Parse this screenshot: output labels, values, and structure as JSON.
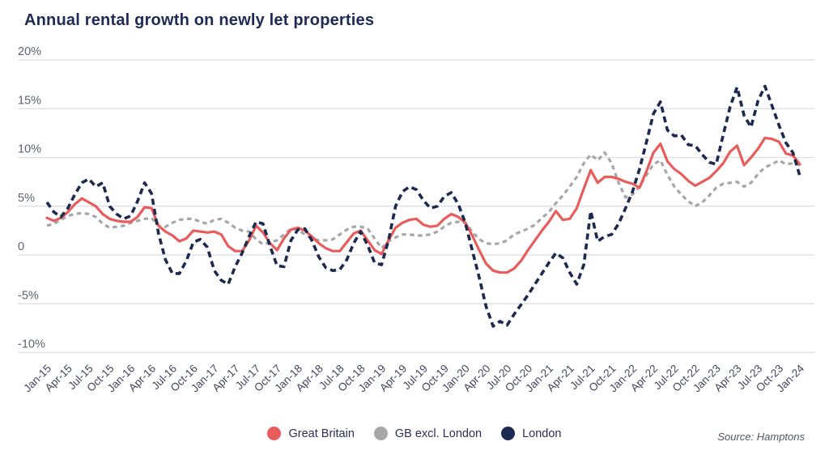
{
  "title": "Annual rental growth on newly let properties",
  "source": "Source: Hamptons",
  "legend": [
    {
      "label": "Great Britain",
      "color": "#e85c5c"
    },
    {
      "label": "GB excl. London",
      "color": "#a7a7a9"
    },
    {
      "label": "London",
      "color": "#1c2a50"
    }
  ],
  "colors": {
    "title": "#1f2a56",
    "gridline": "#dcdde4",
    "y_tick_text": "#5c6070",
    "x_tick_text": "#41465c",
    "background": "#ffffff"
  },
  "chart_data": {
    "type": "line",
    "title": "Annual rental growth on newly let properties",
    "unit": "%",
    "grid": "horizontal",
    "legend_position": "bottom-center",
    "x_start": "Jan-15",
    "x_step_months": 1,
    "x_tick_labels": [
      "Jan-15",
      "Apr-15",
      "Jul-15",
      "Oct-15",
      "Jan-16",
      "Apr-16",
      "Jul-16",
      "Oct-16",
      "Jan-17",
      "Apr-17",
      "Jul-17",
      "Oct-17",
      "Jan-18",
      "Apr-18",
      "Jul-18",
      "Oct-18",
      "Jan-19",
      "Apr-19",
      "Jul-19",
      "Oct-19",
      "Jan-20",
      "Apr-20",
      "Jul-20",
      "Oct-20",
      "Jan-21",
      "Apr-21",
      "Jul-21",
      "Oct-21",
      "Jan-22",
      "Apr-22",
      "Jul-22",
      "Oct-22",
      "Jan-23",
      "Apr-23",
      "Jul-23",
      "Oct-23",
      "Jan-24"
    ],
    "y_tick_labels": [
      "20%",
      "15%",
      "10%",
      "5%",
      "0",
      "-5%",
      "-10%"
    ],
    "y_tick_values": [
      20,
      15,
      10,
      5,
      0,
      -5,
      -10
    ],
    "ylim": [
      -12.5,
      21.5
    ],
    "series": [
      {
        "name": "Great Britain",
        "color": "#e85c5c",
        "style": "solid",
        "values": [
          3.8,
          3.5,
          3.8,
          4.4,
          5.2,
          5.8,
          5.4,
          5.0,
          4.2,
          3.7,
          3.5,
          3.4,
          3.4,
          3.9,
          4.9,
          4.8,
          3.0,
          2.4,
          2.0,
          1.4,
          1.7,
          2.5,
          2.4,
          2.3,
          2.4,
          2.1,
          0.9,
          0.4,
          0.4,
          1.5,
          3.0,
          2.3,
          1.2,
          0.5,
          1.7,
          2.6,
          2.8,
          2.5,
          1.9,
          1.2,
          0.7,
          0.4,
          0.4,
          1.3,
          2.2,
          2.5,
          1.5,
          0.5,
          0.1,
          1.5,
          2.8,
          3.3,
          3.6,
          3.7,
          3.1,
          2.9,
          3.0,
          3.7,
          4.2,
          3.9,
          3.3,
          2.0,
          0.5,
          -0.9,
          -1.6,
          -1.8,
          -1.8,
          -1.4,
          -0.6,
          0.5,
          1.5,
          2.5,
          3.4,
          4.5,
          3.6,
          3.7,
          4.8,
          6.8,
          8.7,
          7.4,
          8.0,
          8.0,
          7.8,
          7.5,
          7.3,
          6.9,
          8.6,
          10.5,
          11.4,
          9.6,
          8.8,
          8.3,
          7.6,
          7.1,
          7.5,
          7.9,
          8.6,
          9.4,
          10.6,
          11.2,
          9.2,
          10.0,
          10.9,
          12.0,
          11.9,
          11.6,
          10.4,
          10.2,
          9.3
        ]
      },
      {
        "name": "GB excl. London",
        "color": "#a7a7a9",
        "style": "dashed",
        "values": [
          3.0,
          3.2,
          3.6,
          4.0,
          4.2,
          4.3,
          4.2,
          3.9,
          3.2,
          2.8,
          2.9,
          3.0,
          3.3,
          3.5,
          3.7,
          3.8,
          3.0,
          2.9,
          3.3,
          3.6,
          3.7,
          3.7,
          3.4,
          3.2,
          3.6,
          3.7,
          3.3,
          2.8,
          2.5,
          2.4,
          1.6,
          1.1,
          1.3,
          1.5,
          2.1,
          2.7,
          2.6,
          2.1,
          1.7,
          1.5,
          1.5,
          1.6,
          2.1,
          2.6,
          2.9,
          2.9,
          2.7,
          1.7,
          0.7,
          1.4,
          1.8,
          2.1,
          2.1,
          2.0,
          2.0,
          2.1,
          2.4,
          2.9,
          3.3,
          3.4,
          3.3,
          2.4,
          1.6,
          1.2,
          1.1,
          1.2,
          1.5,
          2.1,
          2.4,
          2.7,
          3.1,
          3.8,
          4.4,
          5.3,
          6.1,
          7.0,
          8.0,
          9.4,
          10.3,
          9.7,
          10.5,
          9.4,
          7.4,
          5.9,
          6.2,
          7.0,
          8.2,
          9.3,
          9.7,
          8.2,
          7.0,
          6.2,
          5.5,
          5.0,
          5.4,
          6.1,
          6.9,
          7.3,
          7.4,
          7.5,
          7.0,
          7.4,
          8.3,
          9.0,
          9.3,
          9.7,
          9.3,
          9.4,
          9.2
        ]
      },
      {
        "name": "London",
        "color": "#1c2a50",
        "style": "dashed",
        "values": [
          5.4,
          4.4,
          3.9,
          4.8,
          6.2,
          7.4,
          7.8,
          7.0,
          7.4,
          5.0,
          4.2,
          3.7,
          4.0,
          5.5,
          7.4,
          6.3,
          2.2,
          -0.5,
          -1.9,
          -1.9,
          -0.6,
          1.3,
          1.6,
          0.8,
          -1.6,
          -2.6,
          -3.0,
          -1.2,
          0.2,
          1.9,
          3.4,
          3.2,
          0.9,
          -1.1,
          -1.2,
          1.5,
          2.6,
          2.7,
          1.5,
          -0.2,
          -1.3,
          -1.6,
          -1.5,
          -0.5,
          1.2,
          2.4,
          1.0,
          -0.8,
          -1.0,
          1.5,
          5.0,
          6.5,
          7.0,
          6.7,
          5.6,
          4.8,
          5.0,
          6.0,
          6.4,
          5.2,
          3.3,
          0.5,
          -2.3,
          -5.3,
          -7.3,
          -6.8,
          -7.2,
          -6.1,
          -5.1,
          -4.1,
          -3.0,
          -1.9,
          -0.8,
          0.2,
          -0.3,
          -1.8,
          -3.0,
          -1.0,
          4.5,
          1.4,
          1.9,
          2.1,
          3.2,
          4.8,
          6.5,
          8.8,
          11.6,
          14.5,
          15.7,
          12.8,
          12.2,
          12.3,
          11.3,
          11.2,
          10.3,
          9.5,
          9.3,
          12.3,
          15.2,
          17.2,
          14.3,
          13.1,
          15.8,
          17.3,
          15.3,
          13.3,
          11.5,
          10.5,
          8.1
        ]
      }
    ]
  }
}
